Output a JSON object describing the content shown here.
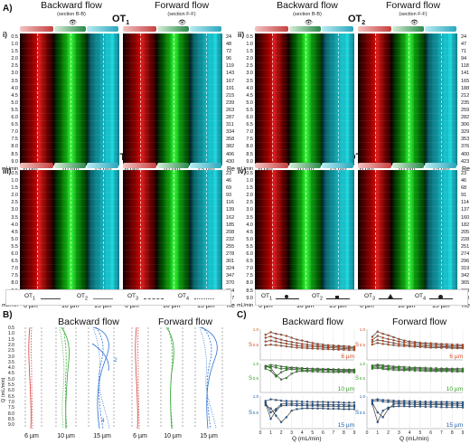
{
  "panel_labels": {
    "A": "A)",
    "B": "B)",
    "C": "C)"
  },
  "sub_labels": {
    "i": "i)",
    "ii": "ii)",
    "iii": "iii)",
    "iv": "iv)"
  },
  "flow": {
    "backward": "Backward flow",
    "backward_section": "(section B-B)",
    "forward": "Forward flow",
    "forward_section": "(section F-F)"
  },
  "ot_labels": {
    "ot1": "OT",
    "ot2": "OT",
    "ot3": "OT",
    "ot4": "OT",
    "n1": "1",
    "n2": "2",
    "n3": "3",
    "n4": "4"
  },
  "flow_axis": [
    "0.5",
    "1.0",
    "1.5",
    "2.0",
    "2.5",
    "3.0",
    "3.5",
    "4.0",
    "4.5",
    "5.0",
    "5.5",
    "6.0",
    "6.5",
    "7.0",
    "7.5",
    "8.0",
    "8.5",
    "9.0"
  ],
  "flow_unit": "mL/min",
  "re_label": "Re",
  "size_labels": {
    "s6": "6 µm",
    "s10": "10 µm",
    "s15": "15 µm"
  },
  "re_values": {
    "ot1": [
      "24",
      "48",
      "72",
      "96",
      "119",
      "143",
      "167",
      "191",
      "215",
      "239",
      "263",
      "287",
      "311",
      "334",
      "358",
      "382",
      "406",
      "430"
    ],
    "ot2": [
      "24",
      "47",
      "71",
      "94",
      "118",
      "141",
      "165",
      "188",
      "212",
      "235",
      "259",
      "282",
      "306",
      "329",
      "353",
      "376",
      "400",
      "423"
    ],
    "ot3": [
      "23",
      "46",
      "69",
      "93",
      "116",
      "139",
      "162",
      "185",
      "208",
      "232",
      "255",
      "278",
      "301",
      "324",
      "347",
      "370",
      "394",
      "417"
    ],
    "ot4": [
      "23",
      "46",
      "68",
      "91",
      "114",
      "137",
      "160",
      "182",
      "205",
      "228",
      "251",
      "274",
      "296",
      "319",
      "342",
      "365",
      "388",
      "410"
    ]
  },
  "legend_A_left": {
    "ot1": "OT",
    "ot2": "OT",
    "ot3": "OT",
    "ot4": "OT",
    "n1": "1",
    "n2": "2",
    "n3": "3",
    "n4": "4"
  },
  "legend_A_right": {
    "ot1": "OT",
    "ot2": "OT",
    "ot3": "OT",
    "ot4": "OT",
    "n1": "1",
    "n2": "2",
    "n3": "3",
    "n4": "4"
  },
  "panelB": {
    "ylabel": "Q (mL/min)",
    "yticks": [
      "0.5",
      "1.0",
      "1.5",
      "2.0",
      "2.5",
      "3.0",
      "3.5",
      "4.0",
      "4.5",
      "5.0",
      "5.5",
      "6.0",
      "6.5",
      "7.0",
      "7.5",
      "8.0",
      "8.5",
      "9.0"
    ],
    "annot": [
      "2",
      "4"
    ]
  },
  "panelC": {
    "ylabel": "S",
    "xlabel": "Q (mL/min)",
    "xticks": [
      "0",
      "1",
      "2",
      "3",
      "4",
      "5",
      "6",
      "7",
      "8",
      "9"
    ],
    "yticks": [
      "1.0",
      "0.8",
      "0.6",
      "0.4",
      "0.2",
      "0"
    ],
    "colors": {
      "s6": "#d14b1e",
      "s10": "#2f9b1f",
      "s15": "#1e5ea7"
    }
  },
  "chart_data": [
    {
      "type": "line",
      "subplot": "C backward 6 µm",
      "x": [
        0.5,
        1,
        1.5,
        2,
        2.5,
        3,
        3.5,
        4,
        4.5,
        5,
        5.5,
        6,
        6.5,
        7,
        7.5,
        8,
        8.5,
        9
      ],
      "series": [
        {
          "values": [
            0.82,
            0.9,
            0.85,
            0.82,
            0.78,
            0.72,
            0.66,
            0.63,
            0.59,
            0.55,
            0.52,
            0.5,
            0.48,
            0.47,
            0.46,
            0.45,
            0.44,
            0.43
          ]
        },
        {
          "values": [
            0.72,
            0.76,
            0.7,
            0.66,
            0.62,
            0.58,
            0.55,
            0.52,
            0.5,
            0.48,
            0.47,
            0.45,
            0.44,
            0.43,
            0.42,
            0.41,
            0.4,
            0.39
          ]
        },
        {
          "values": [
            0.6,
            0.63,
            0.6,
            0.56,
            0.53,
            0.5,
            0.47,
            0.45,
            0.44,
            0.43,
            0.42,
            0.41,
            0.4,
            0.39,
            0.38,
            0.37,
            0.36,
            0.35
          ]
        },
        {
          "values": [
            0.48,
            0.5,
            0.48,
            0.46,
            0.44,
            0.42,
            0.4,
            0.39,
            0.38,
            0.37,
            0.36,
            0.35,
            0.35,
            0.34,
            0.33,
            0.33,
            0.32,
            0.32
          ]
        }
      ],
      "ylim": [
        0,
        1
      ],
      "xlim": [
        0,
        9
      ]
    },
    {
      "type": "line",
      "subplot": "C backward 10 µm",
      "x": [
        0.5,
        1,
        1.5,
        2,
        2.5,
        3,
        3.5,
        4,
        4.5,
        5,
        5.5,
        6,
        6.5,
        7,
        7.5,
        8,
        8.5,
        9
      ],
      "series": [
        {
          "values": [
            0.92,
            0.95,
            0.93,
            0.9,
            0.88,
            0.86,
            0.85,
            0.84,
            0.83,
            0.82,
            0.82,
            0.81,
            0.81,
            0.8,
            0.8,
            0.79,
            0.79,
            0.79
          ]
        },
        {
          "values": [
            0.88,
            0.9,
            0.86,
            0.82,
            0.83,
            0.85,
            0.84,
            0.83,
            0.82,
            0.81,
            0.8,
            0.8,
            0.79,
            0.78,
            0.78,
            0.77,
            0.77,
            0.76
          ]
        },
        {
          "values": [
            0.82,
            0.75,
            0.55,
            0.7,
            0.78,
            0.8,
            0.79,
            0.78,
            0.77,
            0.77,
            0.76,
            0.76,
            0.75,
            0.75,
            0.74,
            0.74,
            0.73,
            0.73
          ]
        },
        {
          "values": [
            0.9,
            0.85,
            0.6,
            0.45,
            0.5,
            0.65,
            0.72,
            0.74,
            0.73,
            0.72,
            0.72,
            0.71,
            0.71,
            0.7,
            0.7,
            0.7,
            0.69,
            0.69
          ]
        }
      ],
      "ylim": [
        0,
        1
      ],
      "xlim": [
        0,
        9
      ]
    },
    {
      "type": "line",
      "subplot": "C backward 15 µm",
      "x": [
        0.5,
        1,
        1.5,
        2,
        2.5,
        3,
        3.5,
        4,
        4.5,
        5,
        5.5,
        6,
        6.5,
        7,
        7.5,
        8,
        8.5,
        9
      ],
      "series": [
        {
          "values": [
            0.85,
            0.9,
            0.88,
            0.86,
            0.85,
            0.84,
            0.84,
            0.83,
            0.83,
            0.82,
            0.82,
            0.82,
            0.81,
            0.81,
            0.81,
            0.8,
            0.8,
            0.8
          ]
        },
        {
          "values": [
            0.8,
            0.5,
            0.6,
            0.75,
            0.78,
            0.77,
            0.76,
            0.76,
            0.75,
            0.75,
            0.74,
            0.74,
            0.74,
            0.73,
            0.73,
            0.73,
            0.72,
            0.72
          ]
        },
        {
          "values": [
            0.78,
            0.3,
            0.55,
            0.7,
            0.72,
            0.72,
            0.71,
            0.71,
            0.7,
            0.7,
            0.7,
            0.69,
            0.69,
            0.69,
            0.68,
            0.68,
            0.68,
            0.67
          ]
        },
        {
          "values": [
            0.72,
            0.62,
            0.4,
            0.2,
            0.35,
            0.55,
            0.6,
            0.62,
            0.63,
            0.62,
            0.62,
            0.62,
            0.61,
            0.61,
            0.61,
            0.6,
            0.6,
            0.6
          ]
        }
      ],
      "ylim": [
        0,
        1
      ],
      "xlim": [
        0,
        9
      ]
    },
    {
      "type": "line",
      "subplot": "C forward 6 µm",
      "x": [
        0.5,
        1,
        1.5,
        2,
        2.5,
        3,
        3.5,
        4,
        4.5,
        5,
        5.5,
        6,
        6.5,
        7,
        7.5,
        8,
        8.5,
        9
      ],
      "series": [
        {
          "values": [
            0.75,
            0.92,
            0.85,
            0.8,
            0.74,
            0.68,
            0.63,
            0.6,
            0.58,
            0.56,
            0.55,
            0.54,
            0.53,
            0.52,
            0.51,
            0.5,
            0.5,
            0.49
          ]
        },
        {
          "values": [
            0.65,
            0.78,
            0.72,
            0.68,
            0.64,
            0.6,
            0.57,
            0.55,
            0.53,
            0.52,
            0.5,
            0.49,
            0.48,
            0.47,
            0.46,
            0.46,
            0.45,
            0.45
          ]
        },
        {
          "values": [
            0.58,
            0.65,
            0.62,
            0.58,
            0.55,
            0.52,
            0.5,
            0.48,
            0.47,
            0.46,
            0.45,
            0.44,
            0.43,
            0.42,
            0.42,
            0.41,
            0.41,
            0.4
          ]
        },
        {
          "values": [
            0.5,
            0.55,
            0.52,
            0.5,
            0.48,
            0.46,
            0.45,
            0.44,
            0.43,
            0.42,
            0.41,
            0.4,
            0.4,
            0.39,
            0.39,
            0.38,
            0.38,
            0.38
          ]
        }
      ],
      "ylim": [
        0,
        1
      ],
      "xlim": [
        0,
        9
      ]
    },
    {
      "type": "line",
      "subplot": "C forward 10 µm",
      "x": [
        0.5,
        1,
        1.5,
        2,
        2.5,
        3,
        3.5,
        4,
        4.5,
        5,
        5.5,
        6,
        6.5,
        7,
        7.5,
        8,
        8.5,
        9
      ],
      "series": [
        {
          "values": [
            0.93,
            0.96,
            0.94,
            0.92,
            0.9,
            0.89,
            0.88,
            0.87,
            0.86,
            0.85,
            0.85,
            0.84,
            0.84,
            0.83,
            0.83,
            0.82,
            0.82,
            0.82
          ]
        },
        {
          "values": [
            0.9,
            0.92,
            0.9,
            0.88,
            0.86,
            0.85,
            0.84,
            0.83,
            0.82,
            0.82,
            0.81,
            0.81,
            0.8,
            0.8,
            0.79,
            0.79,
            0.79,
            0.78
          ]
        },
        {
          "values": [
            0.86,
            0.88,
            0.85,
            0.83,
            0.82,
            0.81,
            0.8,
            0.79,
            0.79,
            0.78,
            0.78,
            0.77,
            0.77,
            0.76,
            0.76,
            0.76,
            0.75,
            0.75
          ]
        },
        {
          "values": [
            0.82,
            0.84,
            0.81,
            0.79,
            0.78,
            0.77,
            0.76,
            0.76,
            0.75,
            0.75,
            0.74,
            0.74,
            0.73,
            0.73,
            0.73,
            0.72,
            0.72,
            0.72
          ]
        }
      ],
      "ylim": [
        0,
        1
      ],
      "xlim": [
        0,
        9
      ]
    },
    {
      "type": "line",
      "subplot": "C forward 15 µm",
      "x": [
        0.5,
        1,
        1.5,
        2,
        2.5,
        3,
        3.5,
        4,
        4.5,
        5,
        5.5,
        6,
        6.5,
        7,
        7.5,
        8,
        8.5,
        9
      ],
      "series": [
        {
          "values": [
            0.88,
            0.9,
            0.88,
            0.87,
            0.86,
            0.85,
            0.85,
            0.84,
            0.84,
            0.83,
            0.83,
            0.83,
            0.82,
            0.82,
            0.82,
            0.81,
            0.81,
            0.81
          ]
        },
        {
          "values": [
            0.84,
            0.86,
            0.83,
            0.82,
            0.81,
            0.8,
            0.8,
            0.79,
            0.79,
            0.78,
            0.78,
            0.78,
            0.77,
            0.77,
            0.77,
            0.76,
            0.76,
            0.76
          ]
        },
        {
          "values": [
            0.8,
            0.5,
            0.35,
            0.6,
            0.75,
            0.76,
            0.75,
            0.75,
            0.74,
            0.74,
            0.74,
            0.73,
            0.73,
            0.73,
            0.72,
            0.72,
            0.72,
            0.71
          ]
        },
        {
          "values": [
            0.75,
            0.2,
            0.55,
            0.65,
            0.68,
            0.69,
            0.69,
            0.68,
            0.68,
            0.68,
            0.67,
            0.67,
            0.67,
            0.66,
            0.66,
            0.66,
            0.66,
            0.65
          ]
        }
      ],
      "ylim": [
        0,
        1
      ],
      "xlim": [
        0,
        9
      ]
    }
  ]
}
